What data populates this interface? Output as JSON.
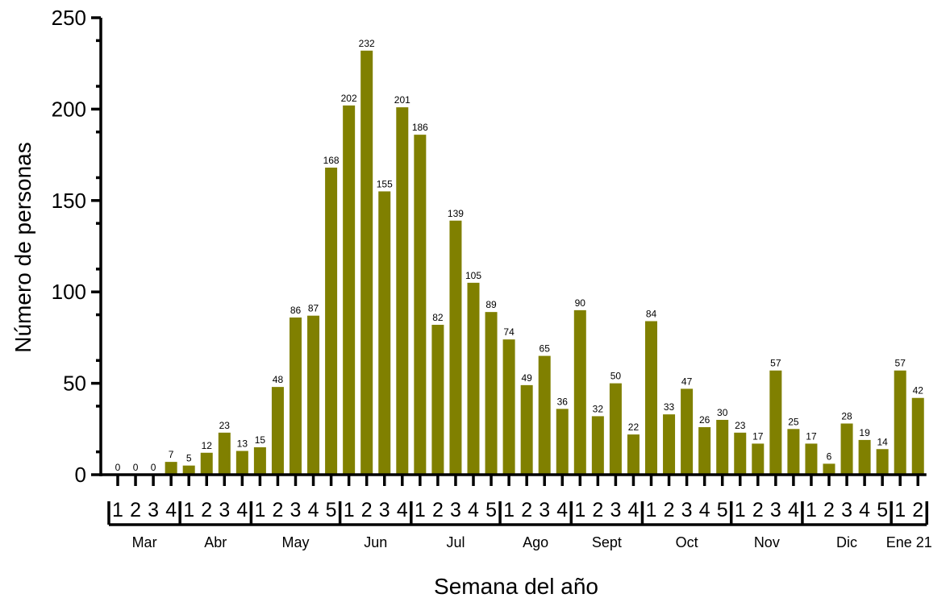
{
  "chart_data": {
    "type": "bar",
    "xlabel": "Semana del año",
    "ylabel": "Número de personas",
    "ylim": [
      0,
      250
    ],
    "yticks": [
      0,
      50,
      100,
      150,
      200,
      250
    ],
    "bar_color": "#808000",
    "months": [
      {
        "label": "Mar",
        "weeks": 4
      },
      {
        "label": "Abr",
        "weeks": 4
      },
      {
        "label": "May",
        "weeks": 5
      },
      {
        "label": "Jun",
        "weeks": 4
      },
      {
        "label": "Jul",
        "weeks": 5
      },
      {
        "label": "Ago",
        "weeks": 4
      },
      {
        "label": "Sept",
        "weeks": 4
      },
      {
        "label": "Oct",
        "weeks": 5
      },
      {
        "label": "Nov",
        "weeks": 4
      },
      {
        "label": "Dic",
        "weeks": 5
      },
      {
        "label": "Ene 21",
        "weeks": 2
      }
    ],
    "categories": [
      "1",
      "2",
      "3",
      "4",
      "1",
      "2",
      "3",
      "4",
      "1",
      "2",
      "3",
      "4",
      "5",
      "1",
      "2",
      "3",
      "4",
      "1",
      "2",
      "3",
      "4",
      "5",
      "1",
      "2",
      "3",
      "4",
      "1",
      "2",
      "3",
      "4",
      "1",
      "2",
      "3",
      "4",
      "5",
      "1",
      "2",
      "3",
      "4",
      "1",
      "2",
      "3",
      "4",
      "5",
      "1",
      "2"
    ],
    "values": [
      0,
      0,
      0,
      7,
      5,
      12,
      23,
      13,
      15,
      48,
      86,
      87,
      168,
      202,
      232,
      155,
      201,
      186,
      82,
      139,
      105,
      89,
      74,
      49,
      65,
      36,
      90,
      32,
      50,
      22,
      84,
      33,
      47,
      26,
      30,
      23,
      17,
      57,
      25,
      17,
      6,
      28,
      19,
      14,
      57,
      42
    ]
  }
}
